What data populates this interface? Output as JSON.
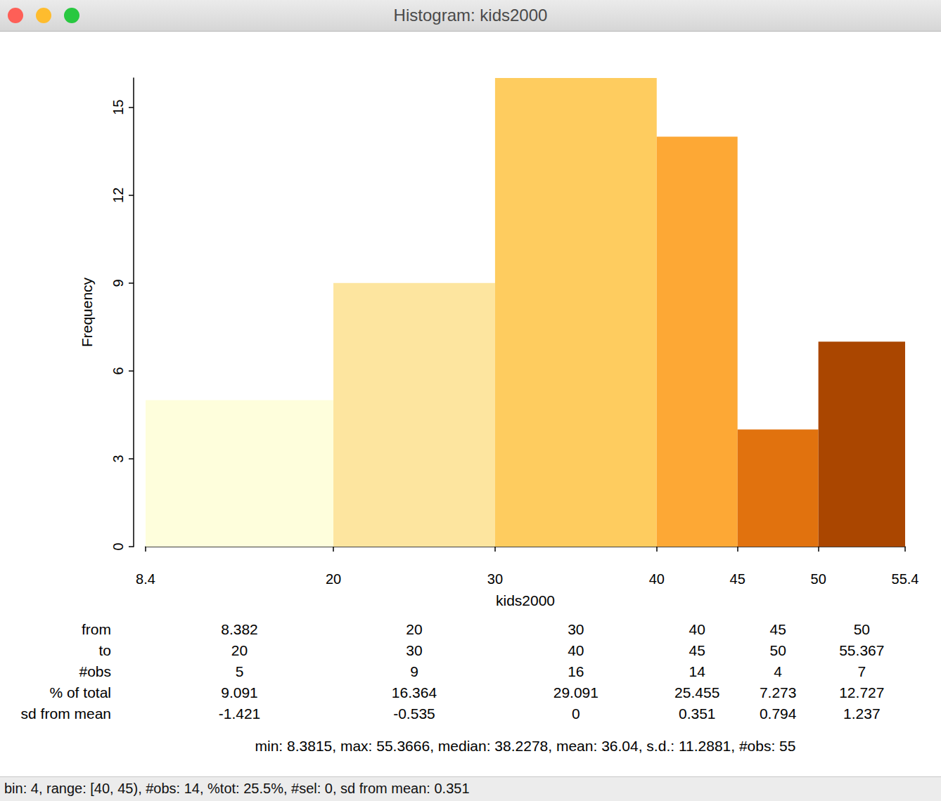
{
  "chart_data": {
    "type": "histogram",
    "title": "Histogram: kids2000",
    "x_label": "kids2000",
    "y_label": "Frequency",
    "bins": [
      8.382,
      20,
      30,
      40,
      45,
      50,
      55.367
    ],
    "counts": [
      5,
      9,
      16,
      14,
      4,
      7
    ],
    "colors": [
      "#fefedc",
      "#fde59f",
      "#fecc5f",
      "#fda835",
      "#e1720e",
      "#aa4600"
    ],
    "xlim": [
      8.382,
      55.367
    ],
    "xticks": [
      {
        "value": 8.382,
        "label": "8.4"
      },
      20,
      30,
      40,
      45,
      50,
      {
        "value": 55.367,
        "label": "55.4"
      }
    ],
    "ylim": [
      0,
      16
    ],
    "yticks": [
      0,
      3,
      6,
      9,
      12,
      15
    ],
    "grid": false
  },
  "table": {
    "rows": [
      {
        "label": "from",
        "cells": [
          "8.382",
          "20",
          "30",
          "40",
          "45",
          "50"
        ]
      },
      {
        "label": "to",
        "cells": [
          "20",
          "30",
          "40",
          "45",
          "50",
          "55.367"
        ]
      },
      {
        "label": "#obs",
        "cells": [
          "5",
          "9",
          "16",
          "14",
          "4",
          "7"
        ]
      },
      {
        "label": "% of total",
        "cells": [
          "9.091",
          "16.364",
          "29.091",
          "25.455",
          "7.273",
          "12.727"
        ]
      },
      {
        "label": "sd from mean",
        "cells": [
          "-1.421",
          "-0.535",
          "0",
          "0.351",
          "0.794",
          "1.237"
        ]
      }
    ]
  },
  "summary": "min: 8.3815, max: 55.3666, median: 38.2278, mean: 36.04, s.d.: 11.2881, #obs: 55",
  "status_bar": "bin: 4, range: [40, 45), #obs: 14, %tot: 25.5%, #sel: 0, sd from mean: 0.351"
}
